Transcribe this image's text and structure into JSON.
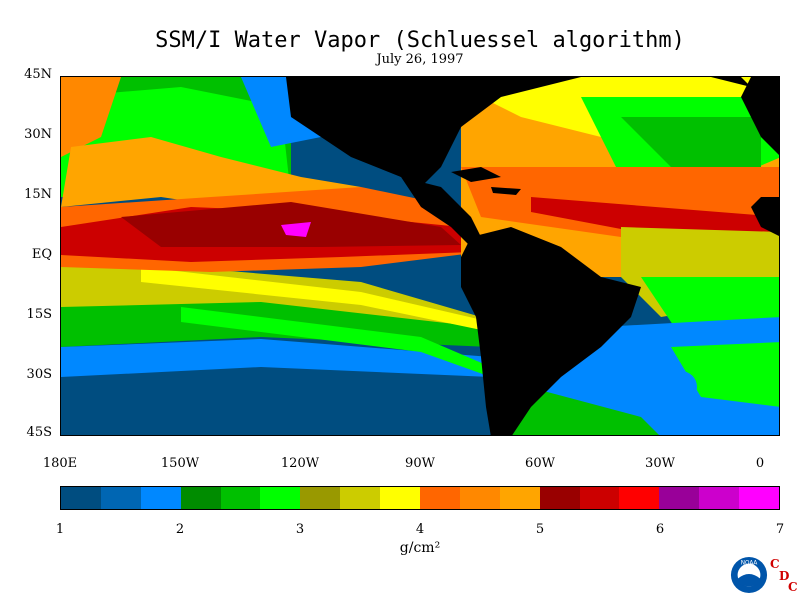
{
  "title": "SSM/I Water Vapor (Schluessel algorithm)",
  "subtitle": "July 26, 1997",
  "lat_labels": [
    "45N",
    "30N",
    "15N",
    "EQ",
    "15S",
    "30S",
    "45S"
  ],
  "lon_labels": [
    "180E",
    "150W",
    "120W",
    "90W",
    "60W",
    "30W",
    "0"
  ],
  "colorbar": {
    "labels": [
      "1",
      "2",
      "3",
      "4",
      "5",
      "6",
      "7"
    ],
    "units": "g/cm²",
    "colors": [
      "#004d80",
      "#0066b3",
      "#0088ff",
      "#008c00",
      "#00c000",
      "#00ff00",
      "#999900",
      "#cccc00",
      "#ffff00",
      "#ff6600",
      "#ff8800",
      "#ffa500",
      "#990000",
      "#cc0000",
      "#ff0000",
      "#990099",
      "#cc00cc",
      "#ff00ff"
    ]
  },
  "logo": {
    "name": "noaa-logo",
    "text": "NOAA"
  },
  "cdc_letters": [
    "C",
    "D",
    "C"
  ]
}
